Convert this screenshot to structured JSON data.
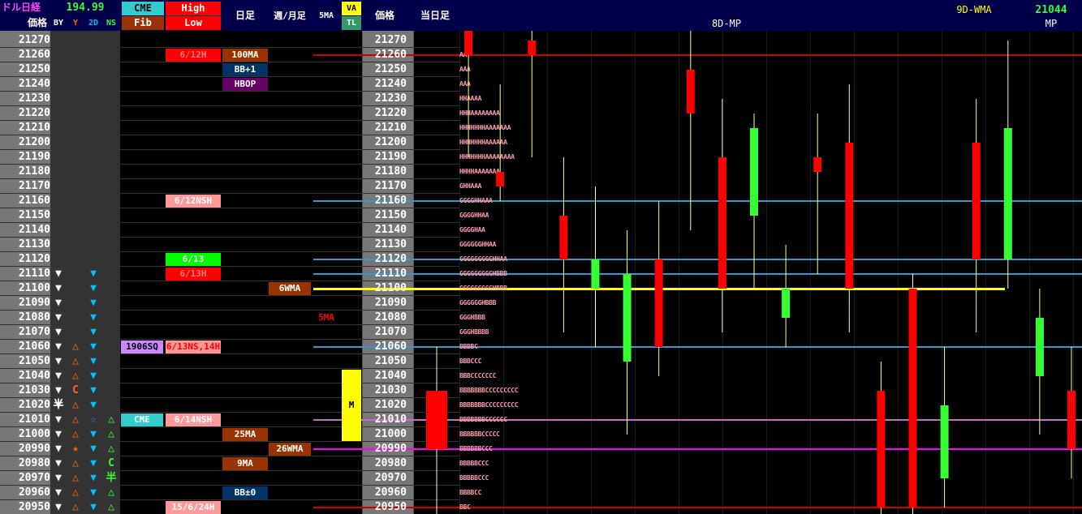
{
  "header": {
    "title": "ドル日経",
    "fx_rate": "194.99",
    "price_label": "価格",
    "by_label": "BY",
    "y_label": "Y",
    "d2_label": "2D",
    "ns_label": "NS",
    "cme_label": "CME",
    "fib_label": "Fib",
    "high_label": "High",
    "low_label": "Low",
    "daily_label": "日足",
    "weekly_label": "週/月足",
    "ma5_label": "5MA",
    "va_label": "VA",
    "tl_label": "TL",
    "price_label2": "価格",
    "today_label": "当日足",
    "mp8d_label": "8D-MP",
    "wma9d_label": "9D-WMA",
    "current_value": "21044",
    "mp_label": "MP"
  },
  "colors": {
    "up": "#33ff33",
    "down": "#ff0000",
    "header_bg": "#00004a",
    "marker": "#00bfff",
    "triangle_up": "#ff6600",
    "triangle_green": "#33ff33"
  },
  "chart_data": {
    "type": "candlestick",
    "prices": [
      21270,
      21260,
      21250,
      21240,
      21230,
      21220,
      21210,
      21200,
      21190,
      21180,
      21170,
      21160,
      21150,
      21140,
      21130,
      21120,
      21110,
      21100,
      21090,
      21080,
      21070,
      21060,
      21050,
      21040,
      21030,
      21020,
      21010,
      21000,
      20990,
      20980,
      20970,
      20960,
      20950
    ],
    "high_low_labels": [
      {
        "price": 21260,
        "text": "6/12H",
        "bg": "#ff0000",
        "fg": "#ff8080"
      },
      {
        "price": 21160,
        "text": "6/12NSH",
        "bg": "#ff9999",
        "fg": "#ffffff"
      },
      {
        "price": 21120,
        "text": "6/13",
        "bg": "#00ff00",
        "fg": "#ffffff"
      },
      {
        "price": 21110,
        "text": "6/13H",
        "bg": "#ff0000",
        "fg": "#ff8080"
      },
      {
        "price": 21060,
        "text": "6/13NS,14H",
        "bg": "#ff9999",
        "fg": "#ff0000"
      },
      {
        "price": 21010,
        "text": "6/14NSH",
        "bg": "#ff9999",
        "fg": "#ffffff"
      },
      {
        "price": 20950,
        "text": "15/6/24H",
        "bg": "#ff9999",
        "fg": "#ffffff"
      }
    ],
    "cme_labels": [
      {
        "price": 21060,
        "text": "1906SQ",
        "bg": "#cc88ff",
        "fg": "#000000"
      },
      {
        "price": 21010,
        "text": "CME",
        "bg": "#33cccc",
        "fg": "#ffffff"
      }
    ],
    "daily_labels": [
      {
        "price": 21260,
        "text": "100MA",
        "bg": "#993300",
        "fg": "#ffffff"
      },
      {
        "price": 21250,
        "text": "BB+1",
        "bg": "#003366",
        "fg": "#ffffff"
      },
      {
        "price": 21240,
        "text": "HBOP",
        "bg": "#660066",
        "fg": "#ffffff"
      },
      {
        "price": 21000,
        "text": "25MA",
        "bg": "#993300",
        "fg": "#ffffff"
      },
      {
        "price": 20980,
        "text": "9MA",
        "bg": "#993300",
        "fg": "#ffffff"
      },
      {
        "price": 20960,
        "text": "BB±0",
        "bg": "#003366",
        "fg": "#ffffff"
      }
    ],
    "weekly_labels": [
      {
        "price": 21100,
        "text": "6WMA",
        "bg": "#993300",
        "fg": "#ffffff"
      },
      {
        "price": 20990,
        "text": "26WMA",
        "bg": "#993300",
        "fg": "#ffffff"
      }
    ],
    "ma5_label": {
      "price": 21080,
      "text": "5MA",
      "color": "#ff0000"
    },
    "va_range": {
      "top": 21040,
      "bottom": 21000,
      "label": "M",
      "label_price": 21020
    },
    "markers": {
      "by": [
        21110,
        21100,
        21090,
        21080,
        21070,
        21060,
        21050,
        21040,
        21030,
        21020,
        21010,
        21000,
        20990,
        20980,
        20970,
        20960,
        20950
      ],
      "y": [
        {
          "price": 21060,
          "text": "△",
          "color": "#ff6600"
        },
        {
          "price": 21050,
          "text": "△",
          "color": "#ff6600"
        },
        {
          "price": 21040,
          "text": "△",
          "color": "#ff6600"
        },
        {
          "price": 21030,
          "text": "C",
          "color": "#ff6600"
        },
        {
          "price": 21020,
          "text": "△",
          "color": "#ff6600"
        },
        {
          "price": 21010,
          "text": "△",
          "color": "#ff6600"
        },
        {
          "price": 21000,
          "text": "△",
          "color": "#ff6600"
        },
        {
          "price": 20990,
          "text": "★",
          "color": "#ff6600"
        },
        {
          "price": 20980,
          "text": "△",
          "color": "#ff6600"
        },
        {
          "price": 20970,
          "text": "△",
          "color": "#ff6600"
        },
        {
          "price": 20960,
          "text": "△",
          "color": "#ff6600"
        },
        {
          "price": 20950,
          "text": "△",
          "color": "#ff6600"
        }
      ],
      "half": {
        "price": 21020,
        "text": "半",
        "color": "#ffffff"
      },
      "d2": [
        21110,
        21100,
        21090,
        21080,
        21070,
        21060,
        21050,
        21040,
        21030,
        21020,
        21000,
        20990,
        20980,
        20970,
        20960,
        20950
      ],
      "d2_star": {
        "price": 21010,
        "text": "☆",
        "color": "#00bfff"
      },
      "ns": [
        {
          "price": 21010,
          "text": "△",
          "color": "#33ff33"
        },
        {
          "price": 21000,
          "text": "△",
          "color": "#33ff33"
        },
        {
          "price": 20990,
          "text": "△",
          "color": "#33ff33"
        },
        {
          "price": 20980,
          "text": "C",
          "color": "#33ff33"
        },
        {
          "price": 20970,
          "text": "半",
          "color": "#33ff33"
        },
        {
          "price": 20960,
          "text": "△",
          "color": "#33ff33"
        },
        {
          "price": 20950,
          "text": "△",
          "color": "#33ff33"
        }
      ]
    },
    "tpo_profile": [
      {
        "price": 21260,
        "text": "AA"
      },
      {
        "price": 21250,
        "text": "AAA"
      },
      {
        "price": 21240,
        "text": "AAA"
      },
      {
        "price": 21230,
        "text": "HHAAAA"
      },
      {
        "price": 21220,
        "text": "HHHAAAAAAAA"
      },
      {
        "price": 21210,
        "text": "HHHHHHHAAAAAAA"
      },
      {
        "price": 21200,
        "text": "HHHHHHHAAAAAA"
      },
      {
        "price": 21190,
        "text": "HHHHHHHAAAAAAAA"
      },
      {
        "price": 21180,
        "text": "HHHHAAAAAAA"
      },
      {
        "price": 21170,
        "text": "GHHAAA"
      },
      {
        "price": 21160,
        "text": "GGGGHHAAA"
      },
      {
        "price": 21150,
        "text": "GGGGHHAA"
      },
      {
        "price": 21140,
        "text": "GGGGHAA"
      },
      {
        "price": 21130,
        "text": "GGGGGGHHAA"
      },
      {
        "price": 21120,
        "text": "GGGGGGGGGHHAA"
      },
      {
        "price": 21110,
        "text": "GGGGGGGGGHBBB"
      },
      {
        "price": 21100,
        "text": "GGGGGGGGGHBBB"
      },
      {
        "price": 21090,
        "text": "GGGGGGHBBB"
      },
      {
        "price": 21080,
        "text": "GGGHBBB"
      },
      {
        "price": 21070,
        "text": "GGGHBBBB"
      },
      {
        "price": 21060,
        "text": "BBBBC"
      },
      {
        "price": 21050,
        "text": "BBBCCC"
      },
      {
        "price": 21040,
        "text": "BBBCCCCCCC"
      },
      {
        "price": 21030,
        "text": "BBBBBBBCCCCCCCCC"
      },
      {
        "price": 21020,
        "text": "BBBBBBBCCCCCCCCC"
      },
      {
        "price": 21010,
        "text": "BBBBBBBCCCCCC"
      },
      {
        "price": 21000,
        "text": "BBBBBBCCCCC"
      },
      {
        "price": 20990,
        "text": "BBBBBBCCC"
      },
      {
        "price": 20980,
        "text": "BBBBBCCC"
      },
      {
        "price": 20970,
        "text": "BBBBBCCC"
      },
      {
        "price": 20960,
        "text": "BBBBCC"
      },
      {
        "price": 20950,
        "text": "BBC"
      }
    ],
    "hlines": [
      {
        "price": 21260,
        "color": "#cc0000"
      },
      {
        "price": 21160,
        "color": "#3399cc"
      },
      {
        "price": 21120,
        "color": "#3399cc"
      },
      {
        "price": 21110,
        "color": "#3399cc"
      },
      {
        "price": 21100,
        "color": "#ffff00"
      },
      {
        "price": 21060,
        "color": "#3399cc"
      },
      {
        "price": 21010,
        "color": "#3399cc"
      },
      {
        "price": 21010,
        "color": "#cc66cc"
      },
      {
        "price": 20990,
        "color": "#ff00ff"
      },
      {
        "price": 20950,
        "color": "#cc0000"
      }
    ],
    "candles": [
      {
        "open": 21030,
        "close": 20990,
        "high": 21060,
        "low": 20940
      },
      {
        "open": 21280,
        "close": 21260,
        "high": 21290,
        "low": 21190
      },
      {
        "open": 21180,
        "close": 21170,
        "high": 21240,
        "low": 21160
      },
      {
        "open": 21270,
        "close": 21260,
        "high": 21290,
        "low": 21190
      },
      {
        "open": 21150,
        "close": 21120,
        "high": 21190,
        "low": 21070
      },
      {
        "open": 21100,
        "close": 21120,
        "high": 21170,
        "low": 21060
      },
      {
        "open": 21050,
        "close": 21110,
        "high": 21140,
        "low": 21000
      },
      {
        "open": 21120,
        "close": 21060,
        "high": 21160,
        "low": 21040
      },
      {
        "open": 21250,
        "close": 21220,
        "high": 21290,
        "low": 21140
      },
      {
        "open": 21190,
        "close": 21100,
        "high": 21230,
        "low": 21070
      },
      {
        "open": 21150,
        "close": 21210,
        "high": 21220,
        "low": 21100
      },
      {
        "open": 21080,
        "close": 21100,
        "high": 21130,
        "low": 21060
      },
      {
        "open": 21190,
        "close": 21180,
        "high": 21220,
        "low": 21110
      },
      {
        "open": 21200,
        "close": 21100,
        "high": 21240,
        "low": 21070
      },
      {
        "open": 21030,
        "close": 20950,
        "high": 21050,
        "low": 20940
      },
      {
        "open": 21100,
        "close": 20950,
        "high": 21110,
        "low": 20940
      },
      {
        "open": 20970,
        "close": 21020,
        "high": 21060,
        "low": 20950
      },
      {
        "open": 21200,
        "close": 21120,
        "high": 21230,
        "low": 21070
      },
      {
        "open": 21120,
        "close": 21210,
        "high": 21270,
        "low": 21100
      },
      {
        "open": 21040,
        "close": 21080,
        "high": 21100,
        "low": 21000
      },
      {
        "open": 21030,
        "close": 20990,
        "high": 21060,
        "low": 20970
      }
    ]
  }
}
